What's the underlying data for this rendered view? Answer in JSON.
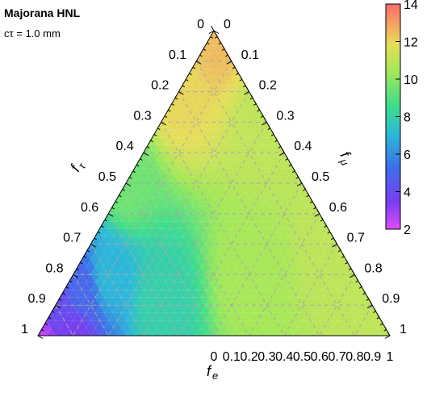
{
  "chart_data": {
    "type": "heatmap",
    "title": "Majorana HNL",
    "subtitle": "cτ = 1.0 mm",
    "axes": {
      "bottom": {
        "label": "f",
        "label_sub": "e",
        "ticks": [
          "0",
          "0.1",
          "0.2",
          "0.3",
          "0.4",
          "0.5",
          "0.6",
          "0.7",
          "0.8",
          "0.9",
          "1"
        ]
      },
      "left": {
        "label": "f",
        "label_sub": "τ",
        "ticks": [
          "0",
          "0.1",
          "0.2",
          "0.3",
          "0.4",
          "0.5",
          "0.6",
          "0.7",
          "0.8",
          "0.9",
          "1"
        ]
      },
      "right": {
        "label": "f",
        "label_sub": "μ",
        "ticks": [
          "1",
          "0.9",
          "0.8",
          "0.7",
          "0.6",
          "0.5",
          "0.4",
          "0.3",
          "0.2",
          "0.1",
          "0"
        ]
      }
    },
    "colorbar": {
      "min": 2,
      "max": 14,
      "ticks": [
        "2",
        "4",
        "6",
        "8",
        "10",
        "12",
        "14"
      ],
      "tick_values": [
        2,
        4,
        6,
        8,
        10,
        12,
        14
      ]
    },
    "grid": true,
    "field": {
      "description_points": [
        {
          "f_e": 0.0,
          "f_tau": 1.0,
          "value": 2.5
        },
        {
          "f_e": 0.1,
          "f_tau": 0.9,
          "value": 3.5
        },
        {
          "f_e": 0.0,
          "f_tau": 0.9,
          "value": 4.0
        },
        {
          "f_e": 0.05,
          "f_tau": 0.8,
          "value": 5.0
        },
        {
          "f_e": 0.1,
          "f_tau": 0.7,
          "value": 7.0
        },
        {
          "f_e": 0.3,
          "f_tau": 0.6,
          "value": 8.0
        },
        {
          "f_e": 0.0,
          "f_tau": 0.5,
          "value": 9.5
        },
        {
          "f_e": 0.5,
          "f_tau": 0.3,
          "value": 10.5
        },
        {
          "f_e": 0.3,
          "f_tau": 0.0,
          "value": 11.0
        },
        {
          "f_e": 0.7,
          "f_tau": 0.0,
          "value": 11.0
        },
        {
          "f_e": 0.0,
          "f_tau": 0.2,
          "value": 12.0
        },
        {
          "f_e": 0.0,
          "f_tau": 0.0,
          "value": 12.5
        },
        {
          "f_e": 1.0,
          "f_tau": 0.0,
          "value": 11.0
        }
      ]
    }
  }
}
